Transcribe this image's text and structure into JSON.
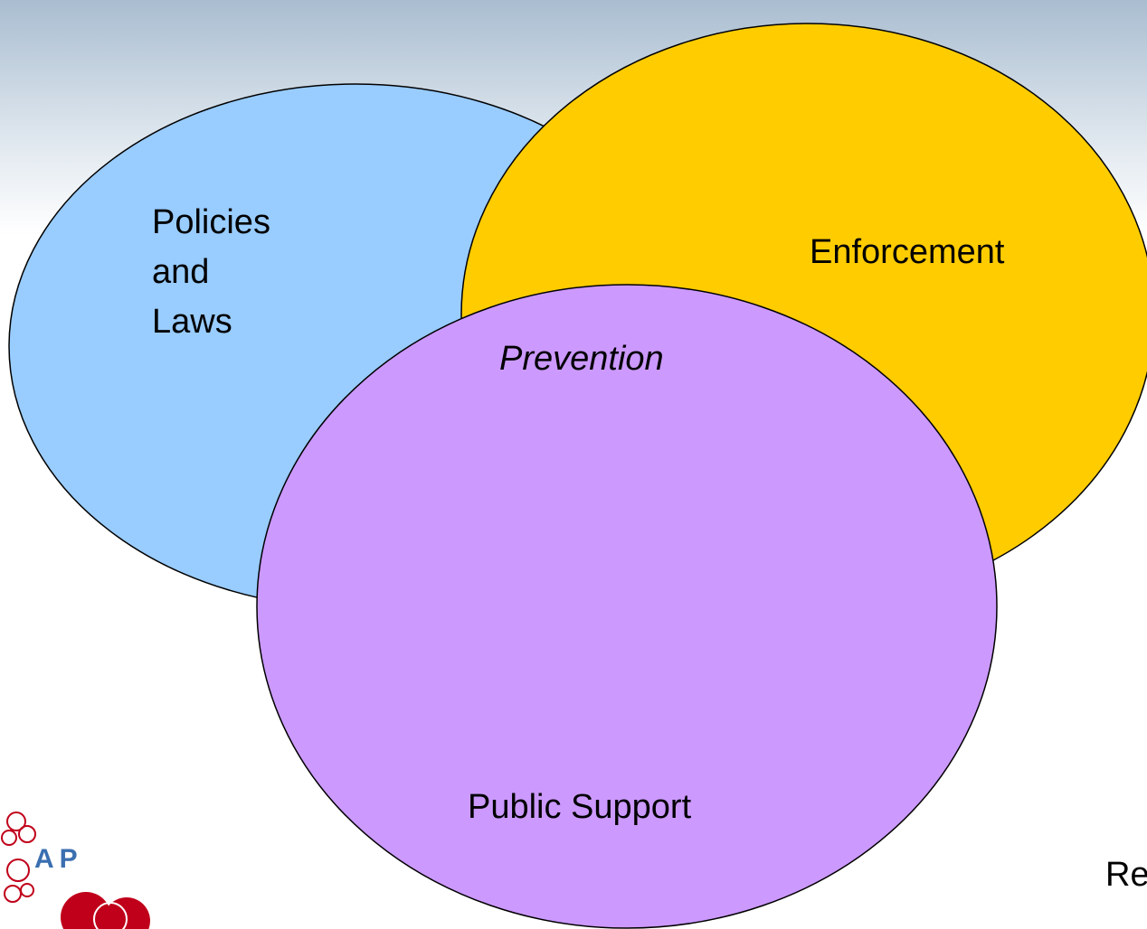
{
  "diagram": {
    "type": "venn",
    "circles": [
      {
        "id": "policies",
        "lines": [
          "Policies",
          "and",
          "Laws"
        ],
        "color": "#99ccff"
      },
      {
        "id": "enforcement",
        "label": "Enforcement",
        "color": "#ffcc00"
      },
      {
        "id": "public-support",
        "label": "Public Support",
        "color": "#cc99ff"
      }
    ],
    "center_label": "Prevention",
    "outline_color": "#000000"
  },
  "footer": {
    "text": "Re"
  },
  "logo": {
    "letters": "AP",
    "accent_color": "#c0001a"
  }
}
